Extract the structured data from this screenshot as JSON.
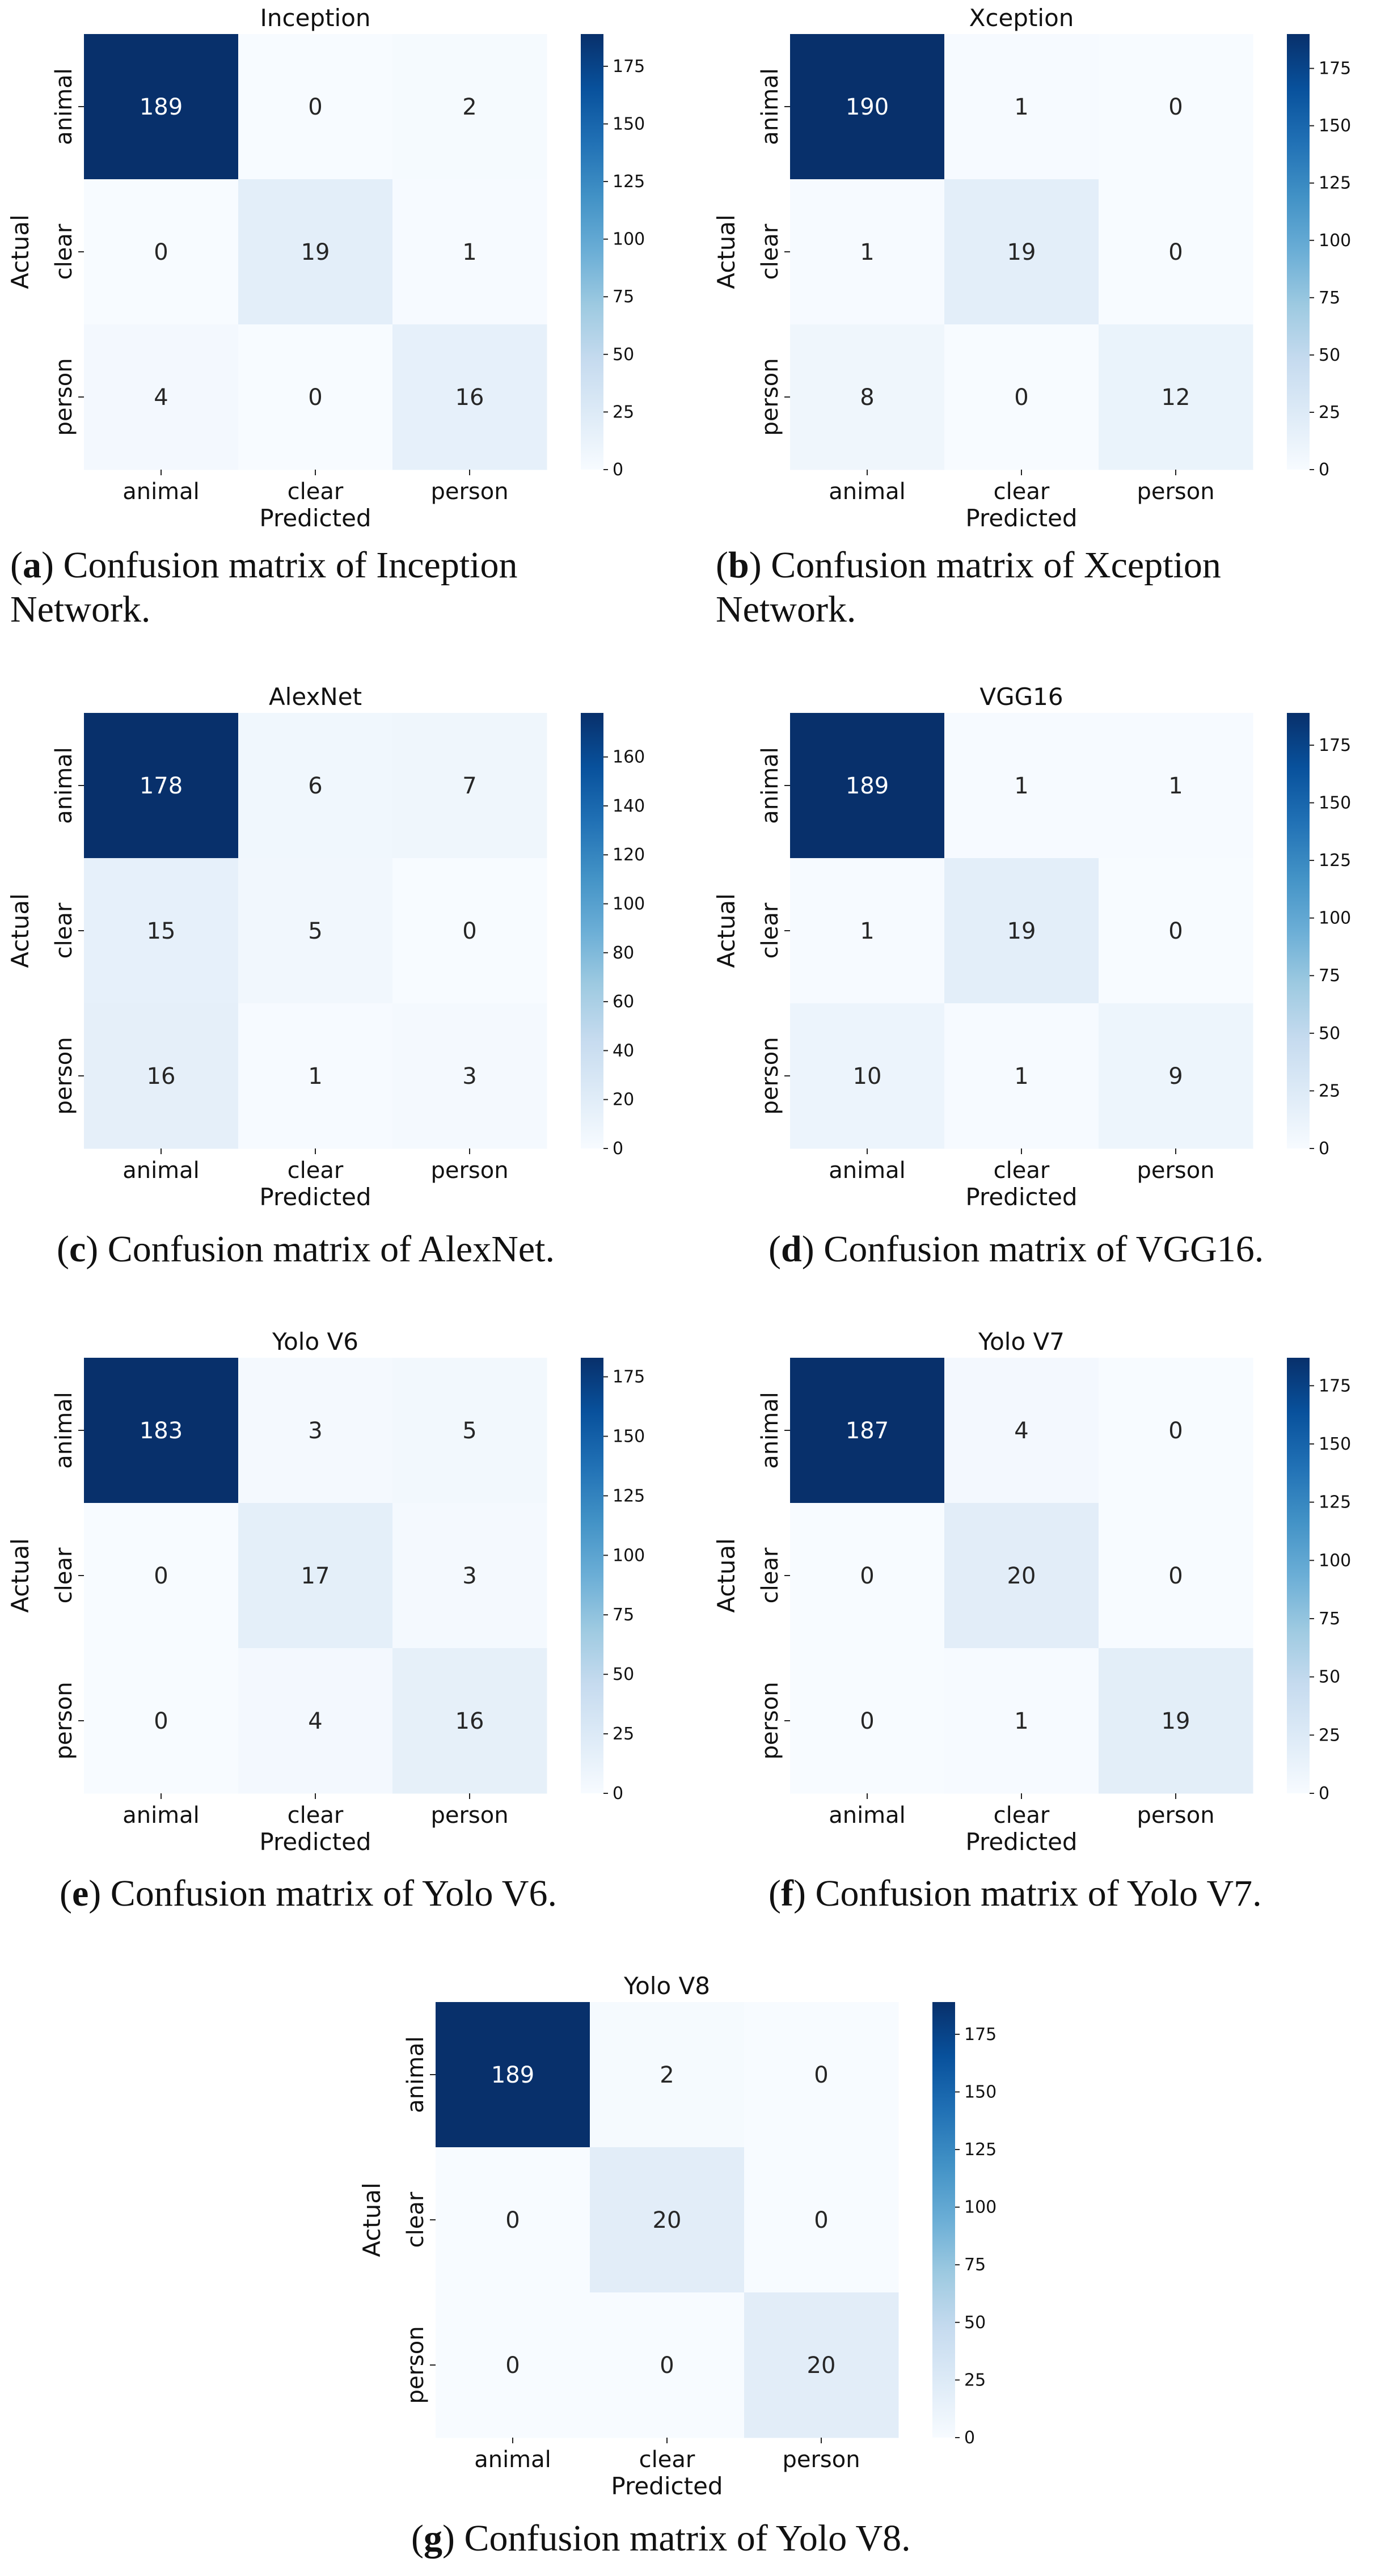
{
  "figure": {
    "panels": [
      {
        "label": "a",
        "caption": "Confusion matrix of Inception Network."
      },
      {
        "label": "b",
        "caption": "Confusion matrix of Xception Network."
      },
      {
        "label": "c",
        "caption": "Confusion matrix of AlexNet."
      },
      {
        "label": "d",
        "caption": "Confusion matrix of VGG16."
      },
      {
        "label": "e",
        "caption": "Confusion matrix of Yolo V6."
      },
      {
        "label": "f",
        "caption": "Confusion matrix of Yolo V7."
      },
      {
        "label": "g",
        "caption": "Confusion matrix of Yolo V8."
      }
    ]
  },
  "colors": {
    "cmap": "Blues",
    "low": "#f7fbff",
    "high": "#08306b"
  },
  "chart_data": [
    {
      "type": "heatmap",
      "title": "Inception",
      "xlabel": "Predicted",
      "ylabel": "Actual",
      "x_categories": [
        "animal",
        "clear",
        "person"
      ],
      "y_categories": [
        "animal",
        "clear",
        "person"
      ],
      "values": [
        [
          189,
          0,
          2
        ],
        [
          0,
          19,
          1
        ],
        [
          4,
          0,
          16
        ]
      ],
      "colorbar": {
        "min": 0,
        "max": 189,
        "ticks": [
          0,
          25,
          50,
          75,
          100,
          125,
          150,
          175
        ]
      }
    },
    {
      "type": "heatmap",
      "title": "Xception",
      "xlabel": "Predicted",
      "ylabel": "Actual",
      "x_categories": [
        "animal",
        "clear",
        "person"
      ],
      "y_categories": [
        "animal",
        "clear",
        "person"
      ],
      "values": [
        [
          190,
          1,
          0
        ],
        [
          1,
          19,
          0
        ],
        [
          8,
          0,
          12
        ]
      ],
      "colorbar": {
        "min": 0,
        "max": 190,
        "ticks": [
          0,
          25,
          50,
          75,
          100,
          125,
          150,
          175
        ]
      }
    },
    {
      "type": "heatmap",
      "title": "AlexNet",
      "xlabel": "Predicted",
      "ylabel": "Actual",
      "x_categories": [
        "animal",
        "clear",
        "person"
      ],
      "y_categories": [
        "animal",
        "clear",
        "person"
      ],
      "values": [
        [
          178,
          6,
          7
        ],
        [
          15,
          5,
          0
        ],
        [
          16,
          1,
          3
        ]
      ],
      "colorbar": {
        "min": 0,
        "max": 178,
        "ticks": [
          0,
          20,
          40,
          60,
          80,
          100,
          120,
          140,
          160
        ]
      }
    },
    {
      "type": "heatmap",
      "title": "VGG16",
      "xlabel": "Predicted",
      "ylabel": "Actual",
      "x_categories": [
        "animal",
        "clear",
        "person"
      ],
      "y_categories": [
        "animal",
        "clear",
        "person"
      ],
      "values": [
        [
          189,
          1,
          1
        ],
        [
          1,
          19,
          0
        ],
        [
          10,
          1,
          9
        ]
      ],
      "colorbar": {
        "min": 0,
        "max": 189,
        "ticks": [
          0,
          25,
          50,
          75,
          100,
          125,
          150,
          175
        ]
      }
    },
    {
      "type": "heatmap",
      "title": "Yolo V6",
      "xlabel": "Predicted",
      "ylabel": "Actual",
      "x_categories": [
        "animal",
        "clear",
        "person"
      ],
      "y_categories": [
        "animal",
        "clear",
        "person"
      ],
      "values": [
        [
          183,
          3,
          5
        ],
        [
          0,
          17,
          3
        ],
        [
          0,
          4,
          16
        ]
      ],
      "colorbar": {
        "min": 0,
        "max": 183,
        "ticks": [
          0,
          25,
          50,
          75,
          100,
          125,
          150,
          175
        ]
      }
    },
    {
      "type": "heatmap",
      "title": "Yolo V7",
      "xlabel": "Predicted",
      "ylabel": "Actual",
      "x_categories": [
        "animal",
        "clear",
        "person"
      ],
      "y_categories": [
        "animal",
        "clear",
        "person"
      ],
      "values": [
        [
          187,
          4,
          0
        ],
        [
          0,
          20,
          0
        ],
        [
          0,
          1,
          19
        ]
      ],
      "colorbar": {
        "min": 0,
        "max": 187,
        "ticks": [
          0,
          25,
          50,
          75,
          100,
          125,
          150,
          175
        ]
      }
    },
    {
      "type": "heatmap",
      "title": "Yolo V8",
      "xlabel": "Predicted",
      "ylabel": "Actual",
      "x_categories": [
        "animal",
        "clear",
        "person"
      ],
      "y_categories": [
        "animal",
        "clear",
        "person"
      ],
      "values": [
        [
          189,
          2,
          0
        ],
        [
          0,
          20,
          0
        ],
        [
          0,
          0,
          20
        ]
      ],
      "colorbar": {
        "min": 0,
        "max": 189,
        "ticks": [
          0,
          25,
          50,
          75,
          100,
          125,
          150,
          175
        ]
      }
    }
  ]
}
